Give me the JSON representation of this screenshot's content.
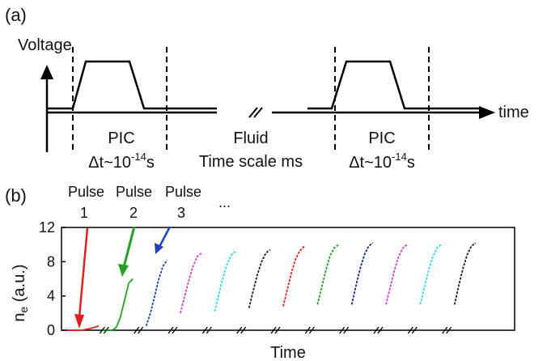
{
  "panel_a": {
    "label": "(a)",
    "y_axis_label": "Voltage",
    "x_axis_label": "time",
    "segments": [
      {
        "name": "PIC",
        "time_step": "Δt~10",
        "exponent": "-14",
        "unit": "s"
      },
      {
        "name": "Fluid",
        "time_scale": "Time scale ms"
      },
      {
        "name": "PIC",
        "time_step": "Δt~10",
        "exponent": "-14",
        "unit": "s"
      }
    ]
  },
  "panel_b": {
    "label": "(b)",
    "pulse_labels": [
      {
        "word": "Pulse",
        "number": "1",
        "color": "#e02020"
      },
      {
        "word": "Pulse",
        "number": "2",
        "color": "#22a022"
      },
      {
        "word": "Pulse",
        "number": "3",
        "color": "#2040c0"
      }
    ],
    "ellipsis": "..."
  },
  "chart_data": {
    "type": "line",
    "title": "",
    "xlabel": "Time",
    "ylabel_main": "n",
    "ylabel_sub": "e",
    "ylabel_unit": " (a.u.)",
    "ylim": [
      0,
      12
    ],
    "y_ticks": [
      "0",
      "4",
      "8",
      "12"
    ],
    "series": [
      {
        "color": "#e02020",
        "values": [
          0.0,
          0.0,
          0.1,
          0.2,
          0.35,
          0.5
        ]
      },
      {
        "color": "#22a022",
        "values": [
          0.0,
          0.3,
          1.5,
          3.5,
          5.5,
          6.0
        ]
      },
      {
        "color": "#2040c0",
        "values": [
          0.5,
          2.0,
          4.0,
          6.0,
          7.5,
          8.2
        ]
      },
      {
        "color": "#d040d0",
        "values": [
          2.0,
          4.0,
          5.8,
          7.5,
          8.6,
          9.0
        ]
      },
      {
        "color": "#30d8e8",
        "values": [
          2.2,
          4.2,
          6.2,
          7.8,
          8.8,
          9.2
        ]
      },
      {
        "color": "#222222",
        "values": [
          2.6,
          4.6,
          6.5,
          8.0,
          9.0,
          9.4
        ]
      },
      {
        "color": "#e02020",
        "values": [
          2.8,
          4.8,
          6.8,
          8.4,
          9.3,
          9.8
        ]
      },
      {
        "color": "#22a022",
        "values": [
          3.0,
          5.0,
          7.0,
          8.7,
          9.6,
          10.0
        ]
      },
      {
        "color": "#1a2a8a",
        "values": [
          3.0,
          5.2,
          7.2,
          8.8,
          9.8,
          10.2
        ]
      },
      {
        "color": "#d040d0",
        "values": [
          3.0,
          5.0,
          7.0,
          8.6,
          9.6,
          10.0
        ]
      },
      {
        "color": "#30d8e8",
        "values": [
          3.0,
          5.0,
          7.0,
          8.6,
          9.6,
          10.0
        ]
      },
      {
        "color": "#222222",
        "values": [
          3.0,
          5.2,
          7.2,
          8.8,
          9.8,
          10.2
        ]
      }
    ]
  }
}
